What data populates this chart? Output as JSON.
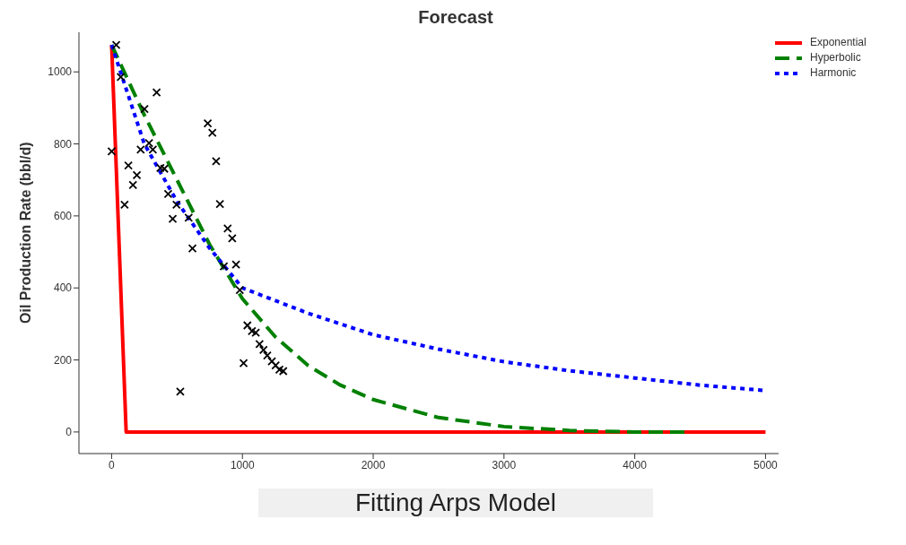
{
  "chart_data": {
    "type": "line",
    "title": "Forecast",
    "ylabel": "Oil Production Rate (bbl/d)",
    "xlim": [
      -250,
      5100
    ],
    "ylim": [
      -60,
      1110
    ],
    "xticks": [
      0,
      1000,
      2000,
      3000,
      4000,
      5000
    ],
    "yticks": [
      0,
      200,
      400,
      600,
      800,
      1000
    ],
    "grid": false,
    "legend": "top right",
    "annotations": [
      "Fitting Arps Model"
    ],
    "series": [
      {
        "type": "scatter",
        "marker": "cross",
        "color": "#000000",
        "x": [
          0,
          35,
          70,
          99,
          128,
          163,
          193,
          222,
          251,
          286,
          315,
          344,
          373,
          403,
          432,
          467,
          496,
          525,
          589,
          618,
          735,
          770,
          799,
          828,
          858,
          887,
          922,
          951,
          980,
          1009,
          1038,
          1073,
          1102,
          1131,
          1161,
          1190,
          1225,
          1254,
          1283,
          1312
        ],
        "values": [
          779,
          1075,
          986,
          631,
          740,
          686,
          713,
          784,
          897,
          802,
          784,
          943,
          733,
          731,
          661,
          592,
          631,
          112,
          595,
          510,
          857,
          831,
          752,
          633,
          460,
          565,
          538,
          465,
          394,
          191,
          296,
          280,
          276,
          244,
          228,
          212,
          196,
          185,
          173,
          169
        ]
      },
      {
        "name": "Exponential",
        "color": "#ff0000",
        "line_style": "solid",
        "x": [
          0,
          111,
          5000
        ],
        "values": [
          1075,
          0,
          0
        ]
      },
      {
        "name": "Hyperbolic",
        "color": "#008000",
        "line_style": "dashed",
        "x": [
          0,
          250,
          500,
          750,
          1000,
          1250,
          1500,
          1750,
          2000,
          2500,
          3000,
          3500,
          4000,
          4400
        ],
        "values": [
          1075,
          880,
          700,
          520,
          370,
          265,
          185,
          130,
          90,
          40,
          15,
          4,
          0,
          0
        ]
      },
      {
        "name": "Harmonic",
        "color": "#0000ff",
        "line_style": "dotted",
        "x": [
          0,
          250,
          500,
          750,
          1000,
          1500,
          2000,
          2500,
          3000,
          3500,
          4000,
          4500,
          5000
        ],
        "values": [
          1075,
          800,
          640,
          510,
          400,
          330,
          270,
          230,
          195,
          170,
          150,
          130,
          115
        ]
      }
    ]
  }
}
